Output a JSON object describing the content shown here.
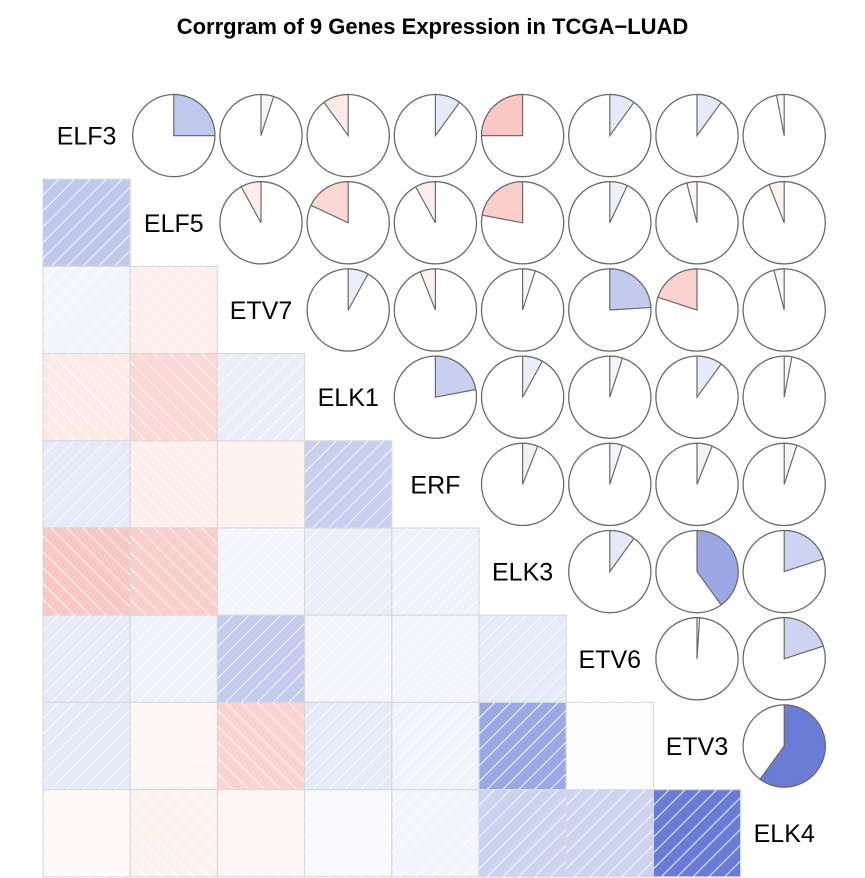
{
  "title": "Corrgram of 9 Genes Expression in TCGA−LUAD",
  "chart_data": {
    "type": "heatmap",
    "title": "Corrgram of 9 Genes Expression in TCGA−LUAD",
    "variables": [
      "ELF3",
      "ELF5",
      "ETV7",
      "ELK1",
      "ERF",
      "ELK3",
      "ETV6",
      "ETV3",
      "ELK4"
    ],
    "lower_panel": "shade",
    "upper_panel": "pie",
    "diagonal_panel": "text labels",
    "color_scale": {
      "negative": "#b2182b",
      "positive": "#2c3fbf",
      "neutral": "#ffffff"
    },
    "correlation_matrix": [
      [
        1.0,
        0.25,
        0.05,
        -0.1,
        0.1,
        -0.25,
        0.1,
        0.1,
        -0.03
      ],
      [
        0.25,
        1.0,
        -0.08,
        -0.18,
        -0.08,
        -0.22,
        0.07,
        -0.04,
        -0.06
      ],
      [
        0.05,
        -0.08,
        1.0,
        0.08,
        -0.06,
        0.05,
        0.24,
        -0.2,
        -0.04
      ],
      [
        -0.1,
        -0.18,
        0.08,
        1.0,
        0.22,
        0.08,
        0.05,
        0.1,
        0.03
      ],
      [
        0.1,
        -0.08,
        -0.06,
        0.22,
        1.0,
        0.06,
        0.05,
        0.06,
        0.05
      ],
      [
        -0.25,
        -0.22,
        0.05,
        0.08,
        0.06,
        1.0,
        0.1,
        0.4,
        0.2
      ],
      [
        0.1,
        0.07,
        0.24,
        0.05,
        0.05,
        0.1,
        1.0,
        0.01,
        0.2
      ],
      [
        0.1,
        -0.04,
        -0.2,
        0.1,
        0.06,
        0.4,
        0.01,
        1.0,
        0.6
      ],
      [
        -0.03,
        -0.06,
        -0.04,
        0.03,
        0.05,
        0.2,
        0.2,
        0.6,
        1.0
      ]
    ]
  }
}
